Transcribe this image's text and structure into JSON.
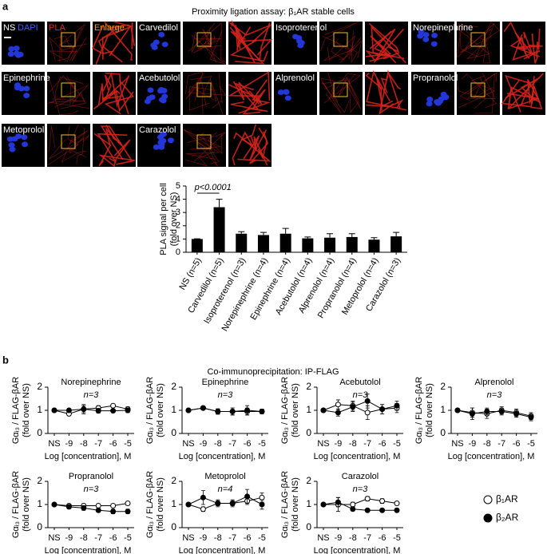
{
  "panel_a": {
    "label": "a",
    "title": "Proximity ligation assay: β₁AR stable cells",
    "channel_labels": [
      "DAPI",
      "PLA",
      "Enlarge"
    ],
    "images": [
      "NS",
      "Carvedilol",
      "Isoproterenol",
      "Norepinephrine",
      "Epinephrine",
      "Acebutolol",
      "Alprenolol",
      "Propranolol",
      "Metoprolol",
      "Carazolol"
    ]
  },
  "panel_b": {
    "label": "b",
    "title": "Co-immunoprecipitation: IP-FLAG"
  },
  "chart_data": [
    {
      "type": "bar",
      "color": "#000000",
      "annotation": "p<0.0001",
      "ylabel": [
        "PLA signal per cell",
        "(fold over NS)"
      ],
      "categories": [
        "NS (n=5)",
        "Carvedilol (n=5)",
        "Isoproterenol (n=3)",
        "Norepinephrine (n=4)",
        "Epinephrine (n=4)",
        "Acebutolol (n=4)",
        "Alprenolol (n=4)",
        "Propranolol (n=4)",
        "Metoprolol (n=4)",
        "Carazolol (n=3)"
      ],
      "values": [
        1,
        3.4,
        1.4,
        1.3,
        1.4,
        1.05,
        1.1,
        1.15,
        0.95,
        1.2
      ],
      "errors": [
        0.02,
        0.6,
        0.15,
        0.2,
        0.4,
        0.1,
        0.3,
        0.25,
        0.15,
        0.3
      ],
      "ylim": [
        0,
        5
      ],
      "yticks": [
        0,
        1,
        2,
        3,
        4,
        5
      ]
    },
    {
      "type": "line",
      "title": "Norepinephrine",
      "annotation": "n=3",
      "xlabel": "Log [concentration], M",
      "ylabel": [
        "Gαᵢ₃ / FLAG-βAR",
        "(fold over NS)"
      ],
      "categories": [
        "NS",
        "-9",
        "-8",
        "-7",
        "-6",
        "-5"
      ],
      "ylim": [
        0,
        2
      ],
      "yticks": [
        0,
        1,
        2
      ],
      "series": [
        {
          "name": "β₁AR",
          "color": "#000000",
          "marker": "open",
          "values": [
            1,
            0.85,
            1.05,
            1.1,
            1.2,
            1.05
          ],
          "errors": [
            0,
            0.08,
            0.15,
            0.1,
            0.08,
            0.1
          ]
        },
        {
          "name": "β₂AR",
          "color": "#000000",
          "marker": "filled",
          "values": [
            1,
            1.0,
            1.05,
            0.98,
            0.98,
            1.0
          ],
          "errors": [
            0,
            0.05,
            0.2,
            0.1,
            0.08,
            0.1
          ]
        }
      ]
    },
    {
      "type": "line",
      "title": "Epinephrine",
      "annotation": "n=3",
      "xlabel": "Log [concentration], M",
      "ylabel": [
        "Gαᵢ₃ / FLAG-βAR",
        "(fold over NS)"
      ],
      "categories": [
        "NS",
        "-9",
        "-8",
        "-7",
        "-6",
        "-5"
      ],
      "ylim": [
        0,
        2
      ],
      "yticks": [
        0,
        1,
        2
      ],
      "series": [
        {
          "name": "β₁AR",
          "color": "#000000",
          "marker": "open",
          "values": [
            1,
            1.1,
            0.95,
            0.95,
            0.95,
            0.95
          ],
          "errors": [
            0,
            0.08,
            0.12,
            0.15,
            0.15,
            0.1
          ]
        },
        {
          "name": "β₂AR",
          "color": "#000000",
          "marker": "filled",
          "values": [
            1,
            1.1,
            0.95,
            0.95,
            1.0,
            0.95
          ],
          "errors": [
            0,
            0.08,
            0.1,
            0.15,
            0.2,
            0.1
          ]
        }
      ]
    },
    {
      "type": "line",
      "title": "Acebutolol",
      "annotation": "n=3",
      "xlabel": "Log [concentration], M",
      "ylabel": [
        "Gαᵢ₃ / FLAG-βAR",
        "(fold over NS)"
      ],
      "categories": [
        "NS",
        "-9",
        "-8",
        "-7",
        "-6",
        "-5"
      ],
      "ylim": [
        0,
        2
      ],
      "yticks": [
        0,
        1,
        2
      ],
      "series": [
        {
          "name": "β₁AR",
          "color": "#000000",
          "marker": "open",
          "values": [
            1,
            1.25,
            1.2,
            0.9,
            1.05,
            1.1
          ],
          "errors": [
            0,
            0.2,
            0.2,
            0.3,
            0.2,
            0.2
          ]
        },
        {
          "name": "β₂AR",
          "color": "#000000",
          "marker": "filled",
          "values": [
            1,
            0.9,
            1.15,
            1.4,
            1.05,
            1.2
          ],
          "errors": [
            0,
            0.15,
            0.2,
            0.3,
            0.2,
            0.2
          ]
        }
      ]
    },
    {
      "type": "line",
      "title": "Alprenolol",
      "annotation": "n=3",
      "xlabel": "Log [concentration], M",
      "ylabel": [
        "Gαᵢ₃ / FLAG-βAR",
        "(fold over NS)"
      ],
      "categories": [
        "NS",
        "-9",
        "-8",
        "-7",
        "-6",
        "-5"
      ],
      "ylim": [
        0,
        2
      ],
      "yticks": [
        0,
        1,
        2
      ],
      "series": [
        {
          "name": "β₁AR",
          "color": "#000000",
          "marker": "open",
          "values": [
            1,
            0.9,
            0.85,
            1.0,
            0.9,
            0.75
          ],
          "errors": [
            0,
            0.2,
            0.2,
            0.15,
            0.15,
            0.15
          ]
        },
        {
          "name": "β₂AR",
          "color": "#000000",
          "marker": "filled",
          "values": [
            1,
            0.85,
            0.95,
            0.95,
            0.85,
            0.7
          ],
          "errors": [
            0,
            0.25,
            0.15,
            0.15,
            0.15,
            0.15
          ]
        }
      ]
    },
    {
      "type": "line",
      "title": "Propranolol",
      "annotation": "n=3",
      "xlabel": "Log [concentration], M",
      "ylabel": [
        "Gαᵢ₃ / FLAG-βAR",
        "(fold over NS)"
      ],
      "categories": [
        "NS",
        "-9",
        "-8",
        "-7",
        "-6",
        "-5"
      ],
      "ylim": [
        0,
        2
      ],
      "yticks": [
        0,
        1,
        2
      ],
      "series": [
        {
          "name": "β₁AR",
          "color": "#000000",
          "marker": "open",
          "values": [
            1,
            0.95,
            0.95,
            0.95,
            0.95,
            1.05
          ],
          "errors": [
            0,
            0.05,
            0.08,
            0.05,
            0.05,
            0.08
          ]
        },
        {
          "name": "β₂AR",
          "color": "#000000",
          "marker": "filled",
          "values": [
            1,
            0.9,
            0.85,
            0.75,
            0.7,
            0.7
          ],
          "errors": [
            0,
            0.08,
            0.1,
            0.08,
            0.1,
            0.1
          ]
        }
      ]
    },
    {
      "type": "line",
      "title": "Metoprolol",
      "annotation": "n=4",
      "xlabel": "Log [concentration], M",
      "ylabel": [
        "Gαᵢ₃ / FLAG-βAR",
        "(fold over NS)"
      ],
      "categories": [
        "NS",
        "-9",
        "-8",
        "-7",
        "-6",
        "-5"
      ],
      "ylim": [
        0,
        2
      ],
      "yticks": [
        0,
        1,
        2
      ],
      "series": [
        {
          "name": "β₁AR",
          "color": "#000000",
          "marker": "open",
          "values": [
            1,
            0.8,
            1.05,
            1.05,
            1.15,
            1.3
          ],
          "errors": [
            0,
            0.1,
            0.1,
            0.1,
            0.15,
            0.2
          ]
        },
        {
          "name": "β₂AR",
          "color": "#000000",
          "marker": "filled",
          "values": [
            1,
            1.3,
            1.05,
            1.05,
            1.35,
            1.0
          ],
          "errors": [
            0,
            0.3,
            0.15,
            0.15,
            0.3,
            0.2
          ]
        }
      ]
    },
    {
      "type": "line",
      "title": "Carazolol",
      "annotation": "n=3",
      "xlabel": "Log [concentration], M",
      "ylabel": [
        "Gαᵢ₃ / FLAG-βAR",
        "(fold over NS)"
      ],
      "categories": [
        "NS",
        "-9",
        "-8",
        "-7",
        "-6",
        "-5"
      ],
      "ylim": [
        0,
        2
      ],
      "yticks": [
        0,
        1,
        2
      ],
      "series": [
        {
          "name": "β₁AR",
          "color": "#000000",
          "marker": "open",
          "values": [
            1,
            1.0,
            1.0,
            1.25,
            1.15,
            1.05
          ],
          "errors": [
            0,
            0.3,
            0.1,
            0.1,
            0.1,
            0.08
          ]
        },
        {
          "name": "β₂AR",
          "color": "#000000",
          "marker": "filled",
          "values": [
            1,
            1.1,
            0.8,
            0.75,
            0.75,
            0.75
          ],
          "errors": [
            0,
            0.2,
            0.08,
            0.05,
            0.05,
            0.08
          ]
        }
      ]
    }
  ]
}
